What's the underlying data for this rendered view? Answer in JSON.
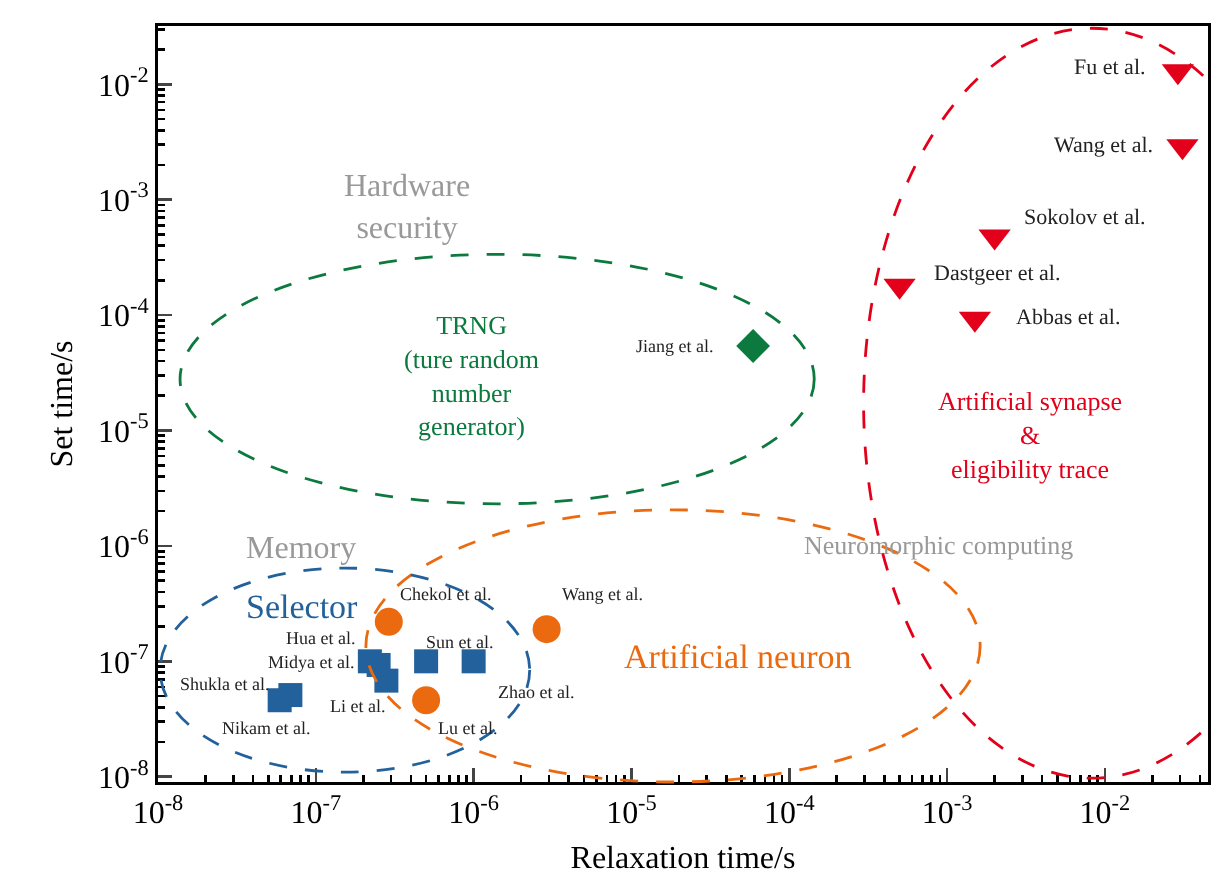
{
  "chart_data": {
    "type": "scatter",
    "xlabel": "Relaxation time/s",
    "ylabel": "Set time/s",
    "log": "xy",
    "grid": false,
    "xlim": [
      1e-08,
      0.045
    ],
    "ylim": [
      9e-09,
      0.032
    ],
    "xticks": [
      {
        "value": 1e-08,
        "label": "10$^{-8}$"
      },
      {
        "value": 1e-07,
        "label": "10$^{-7}$"
      },
      {
        "value": 1e-06,
        "label": "10$^{-6}$"
      },
      {
        "value": 1e-05,
        "label": "10$^{-5}$"
      },
      {
        "value": 0.0001,
        "label": "10$^{-4}$"
      },
      {
        "value": 0.001,
        "label": "10$^{-3}$"
      },
      {
        "value": 0.01,
        "label": "10$^{-2}$"
      }
    ],
    "yticks": [
      {
        "value": 1e-08,
        "label": "10$^{-8}$"
      },
      {
        "value": 1e-07,
        "label": "10$^{-7}$"
      },
      {
        "value": 1e-06,
        "label": "10$^{-6}$"
      },
      {
        "value": 1e-05,
        "label": "10$^{-5}$"
      },
      {
        "value": 0.0001,
        "label": "10$^{-4}$"
      },
      {
        "value": 0.001,
        "label": "10$^{-3}$"
      },
      {
        "value": 0.01,
        "label": "10$^{-2}$"
      }
    ],
    "series": [
      {
        "color": "#22619c",
        "marker": "square",
        "x": [
          6.9e-08,
          5.9e-08,
          2.2e-07,
          2.5e-07,
          2.8e-07,
          5e-07,
          1e-06
        ],
        "values": [
          5.1e-08,
          4.6e-08,
          1e-07,
          9.3e-08,
          6.8e-08,
          1e-07,
          1e-07
        ]
      },
      {
        "color": "#eb6a0f",
        "marker": "circle",
        "x": [
          2.9e-07,
          5e-07,
          2.9e-06
        ],
        "values": [
          2.2e-07,
          4.6e-08,
          1.9e-07
        ]
      },
      {
        "color": "#0c7a3e",
        "marker": "diamond",
        "x": [
          5.9e-05
        ],
        "values": [
          5.4e-05
        ]
      },
      {
        "color": "#e3001b",
        "marker": "triangle",
        "x": [
          0.029,
          0.031,
          0.002,
          0.0005,
          0.0015
        ],
        "values": [
          0.013,
          0.0029,
          0.00048,
          0.00018,
          9.3e-05
        ]
      }
    ],
    "annotations": [
      "Hua et al.",
      "Midya et al.",
      "Shukla et al.",
      "Nikam et al.",
      "Li et al.",
      "Lu et al.",
      "Zhao et al.",
      "Sun et al.",
      "Chekol et al.",
      "Wang et al.",
      "Jiang et al.",
      "Fu et al.",
      "Wang et al.",
      "Sokolov et al.",
      "Dastgeer et al.",
      "Abbas et al.",
      "Hardware\nsecurity",
      "TRNG\n(ture random\nnumber\ngenerator)",
      "Memory",
      "Selector",
      "Artificial neuron",
      "Neuromorphic computing",
      "Artificial synapse\n&\neligibility trace"
    ]
  }
}
